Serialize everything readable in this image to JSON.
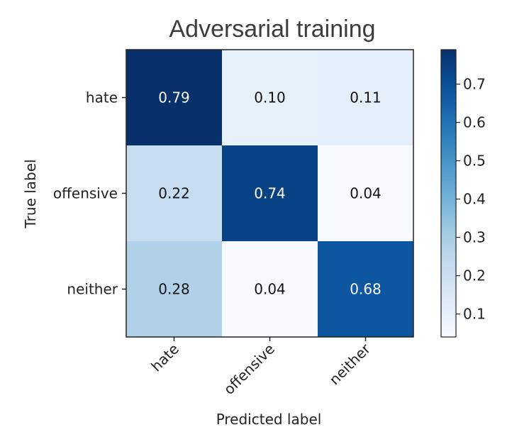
{
  "chart_data": {
    "type": "heatmap",
    "title": "Adversarial training",
    "xlabel": "Predicted label",
    "ylabel": "True label",
    "rows": [
      "hate",
      "offensive",
      "neither"
    ],
    "columns": [
      "hate",
      "offensive",
      "neither"
    ],
    "values": [
      [
        0.79,
        0.1,
        0.11
      ],
      [
        0.22,
        0.74,
        0.04
      ],
      [
        0.28,
        0.04,
        0.68
      ]
    ],
    "cell_labels": [
      [
        "0.79",
        "0.10",
        "0.11"
      ],
      [
        "0.22",
        "0.74",
        "0.04"
      ],
      [
        "0.28",
        "0.04",
        "0.68"
      ]
    ],
    "colormap": "Blues",
    "colorbar": {
      "range": [
        0.04,
        0.79
      ],
      "ticks": [
        0.1,
        0.2,
        0.3,
        0.4,
        0.5,
        0.6,
        0.7
      ],
      "tick_labels": [
        "0.1",
        "0.2",
        "0.3",
        "0.4",
        "0.5",
        "0.6",
        "0.7"
      ]
    },
    "grid": false
  }
}
